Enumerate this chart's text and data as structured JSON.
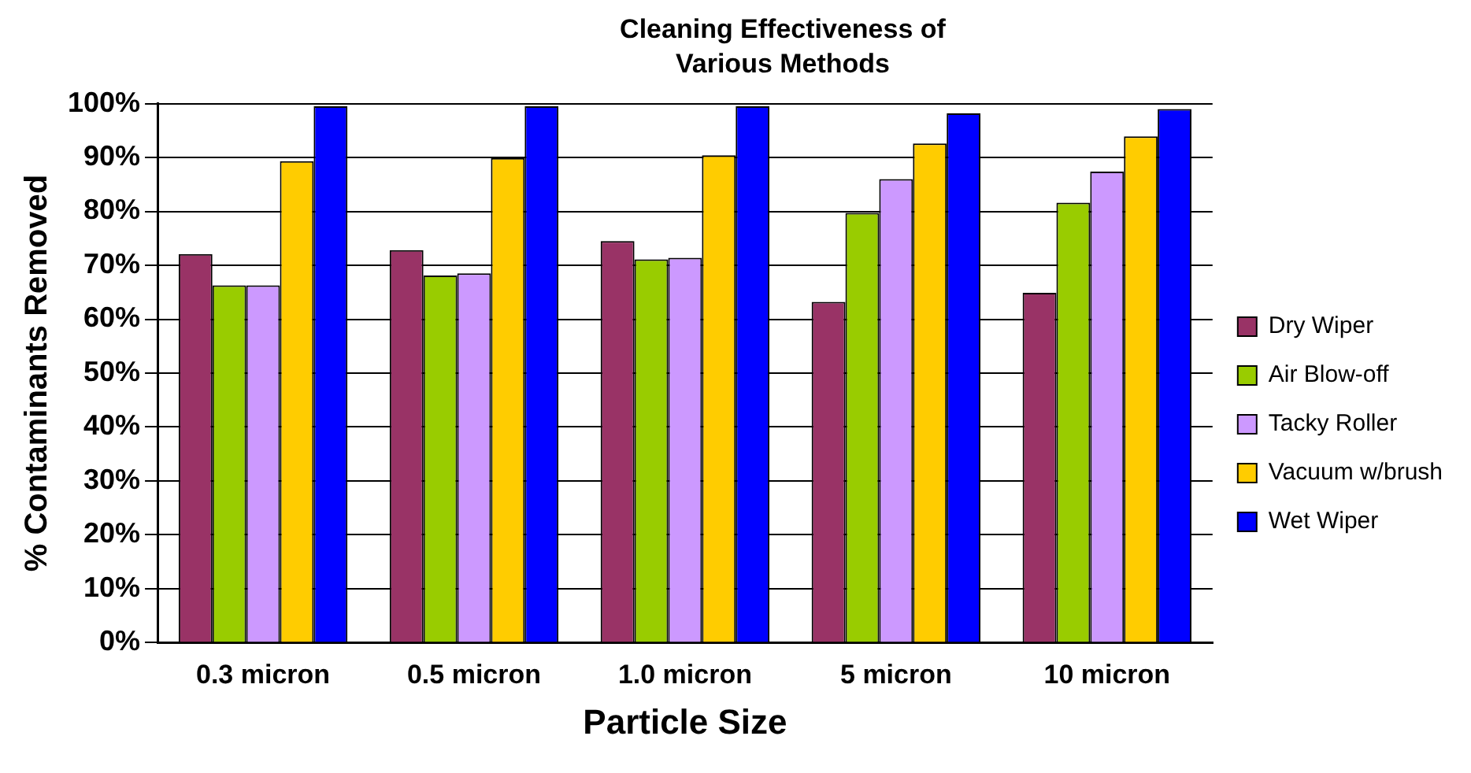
{
  "chart_data": {
    "type": "bar",
    "title": "Cleaning Effectiveness of Various Methods",
    "xlabel": "Particle Size",
    "ylabel": "% Contaminants Removed",
    "categories": [
      "0.3 micron",
      "0.5 micron",
      "1.0 micron",
      "5 micron",
      "10 micron"
    ],
    "series": [
      {
        "name": "Dry Wiper",
        "color": "#993366",
        "values": [
          72.1,
          72.8,
          74.5,
          63.2,
          64.9
        ]
      },
      {
        "name": "Air Blow-off",
        "color": "#99cc00",
        "values": [
          66.3,
          68.1,
          71.1,
          79.7,
          81.6
        ]
      },
      {
        "name": "Tacky Roller",
        "color": "#cc99ff",
        "values": [
          66.3,
          68.5,
          71.4,
          86.0,
          87.4
        ]
      },
      {
        "name": "Vacuum w/brush",
        "color": "#ffcc00",
        "values": [
          89.3,
          89.9,
          90.4,
          92.6,
          93.9
        ]
      },
      {
        "name": "Wet Wiper",
        "color": "#0000ff",
        "values": [
          99.5,
          99.5,
          99.5,
          98.2,
          99.0
        ]
      }
    ],
    "ylim": [
      0,
      100
    ],
    "yticks": [
      {
        "value": 0,
        "label": "0%"
      },
      {
        "value": 10,
        "label": "10%"
      },
      {
        "value": 20,
        "label": "20%"
      },
      {
        "value": 30,
        "label": "30%"
      },
      {
        "value": 40,
        "label": "40%"
      },
      {
        "value": 50,
        "label": "50%"
      },
      {
        "value": 60,
        "label": "60%"
      },
      {
        "value": 70,
        "label": "70%"
      },
      {
        "value": 80,
        "label": "80%"
      },
      {
        "value": 90,
        "label": "90%"
      },
      {
        "value": 100,
        "label": "100%"
      }
    ],
    "grid": "y",
    "legend": "right"
  }
}
